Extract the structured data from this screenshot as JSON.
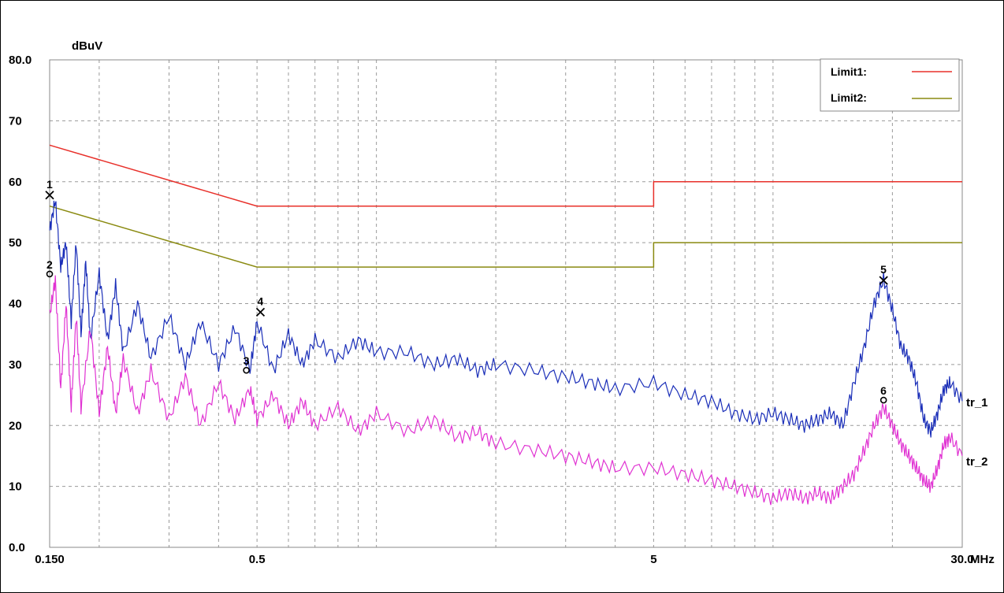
{
  "chart_data": {
    "type": "line",
    "y_unit": "dBuV",
    "x_unit": "MHz",
    "x_scale": "log",
    "xlim": [
      0.15,
      30.0
    ],
    "ylim": [
      0,
      80
    ],
    "y_ticks": [
      {
        "value": 80,
        "label": "80.0"
      },
      {
        "value": 70,
        "label": "70"
      },
      {
        "value": 60,
        "label": "60"
      },
      {
        "value": 50,
        "label": "50"
      },
      {
        "value": 40,
        "label": "40"
      },
      {
        "value": 30,
        "label": "30"
      },
      {
        "value": 20,
        "label": "20"
      },
      {
        "value": 10,
        "label": "10"
      },
      {
        "value": 0,
        "label": "0.0"
      }
    ],
    "x_ticks": [
      {
        "value": 0.15,
        "label": "0.150"
      },
      {
        "value": 0.5,
        "label": "0.5"
      },
      {
        "value": 5,
        "label": "5"
      },
      {
        "value": 30.0,
        "label": "30.0"
      }
    ],
    "grid": true,
    "legend_position": "top-right",
    "limits": [
      {
        "name": "Limit1:",
        "color": "#e8302a",
        "x": [
          0.15,
          0.5,
          0.5,
          5.0,
          5.0,
          30.0
        ],
        "y": [
          66,
          56,
          56,
          56,
          60,
          60
        ]
      },
      {
        "name": "Limit2:",
        "color": "#8a8a10",
        "x": [
          0.15,
          0.5,
          0.5,
          5.0,
          5.0,
          30.0
        ],
        "y": [
          56,
          46,
          46,
          46,
          50,
          50
        ]
      }
    ],
    "series": [
      {
        "name": "tr_1",
        "color": "#1a2eb8",
        "x": [
          0.15,
          0.155,
          0.16,
          0.165,
          0.17,
          0.175,
          0.18,
          0.185,
          0.19,
          0.2,
          0.21,
          0.22,
          0.23,
          0.25,
          0.27,
          0.3,
          0.33,
          0.36,
          0.4,
          0.44,
          0.48,
          0.5,
          0.55,
          0.6,
          0.65,
          0.7,
          0.8,
          0.9,
          1.0,
          1.2,
          1.4,
          1.6,
          1.8,
          2.0,
          2.5,
          3.0,
          3.5,
          4.0,
          5.0,
          6.0,
          7.0,
          8.0,
          9.0,
          10.0,
          11.0,
          12.0,
          13.0,
          14.0,
          15.0,
          16.0,
          17.0,
          18.0,
          19.0,
          20.0,
          21.0,
          22.0,
          23.0,
          24.0,
          25.0,
          26.0,
          27.0,
          28.0,
          30.0
        ],
        "y": [
          52,
          57,
          46,
          50,
          37,
          50,
          35,
          47,
          34,
          45,
          34,
          43,
          32,
          40,
          31,
          38,
          30,
          37,
          30,
          36,
          29,
          37,
          29,
          35,
          30,
          34,
          31,
          34,
          32,
          32,
          30,
          31,
          29,
          30,
          29,
          28,
          27,
          26,
          27,
          25,
          24,
          22,
          21,
          22,
          21,
          20,
          21,
          22,
          20,
          27,
          33,
          40,
          44,
          39,
          33,
          31,
          27,
          21,
          19,
          22,
          26,
          27,
          24
        ]
      },
      {
        "name": "tr_2",
        "color": "#e032d2",
        "x": [
          0.15,
          0.155,
          0.16,
          0.165,
          0.17,
          0.175,
          0.18,
          0.19,
          0.2,
          0.21,
          0.22,
          0.23,
          0.25,
          0.27,
          0.3,
          0.33,
          0.36,
          0.4,
          0.44,
          0.48,
          0.5,
          0.55,
          0.6,
          0.65,
          0.7,
          0.8,
          0.9,
          1.0,
          1.2,
          1.4,
          1.6,
          1.8,
          2.0,
          2.5,
          3.0,
          3.5,
          4.0,
          5.0,
          6.0,
          7.0,
          8.0,
          9.0,
          10.0,
          11.0,
          12.0,
          13.0,
          14.0,
          15.0,
          16.0,
          17.0,
          18.0,
          19.0,
          20.0,
          21.0,
          22.0,
          23.0,
          24.0,
          25.0,
          26.0,
          27.0,
          28.0,
          30.0
        ],
        "y": [
          38,
          44,
          26,
          40,
          23,
          38,
          23,
          36,
          22,
          33,
          22,
          31,
          22,
          29,
          21,
          28,
          20,
          27,
          21,
          26,
          21,
          25,
          20,
          24,
          20,
          23,
          19,
          22,
          19,
          21,
          18,
          19,
          17,
          16,
          15,
          14,
          13,
          13,
          12,
          11,
          10,
          9,
          8,
          9,
          8,
          9,
          8,
          10,
          12,
          16,
          20,
          23,
          20,
          17,
          15,
          13,
          11,
          10,
          13,
          17,
          18,
          15
        ]
      }
    ],
    "markers": [
      {
        "label": "1",
        "symbol": "x",
        "x": 0.15,
        "y": 57.8
      },
      {
        "label": "2",
        "symbol": "o",
        "x": 0.15,
        "y": 44.6
      },
      {
        "label": "3",
        "symbol": "o",
        "x": 0.47,
        "y": 28.8
      },
      {
        "label": "4",
        "symbol": "x",
        "x": 0.51,
        "y": 38.6
      },
      {
        "label": "5",
        "symbol": "x",
        "x": 19.0,
        "y": 43.8
      },
      {
        "label": "6",
        "symbol": "o",
        "x": 19.0,
        "y": 23.9
      }
    ]
  }
}
